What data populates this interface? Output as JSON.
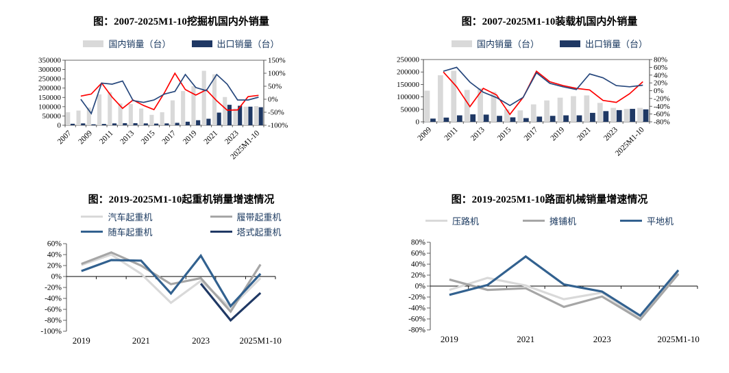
{
  "accent_colors": {
    "bar_gray": "#d9d9d9",
    "bar_navy": "#1f3864",
    "line_red": "#fe0000",
    "line_navy": "#26477c",
    "line_steel_blue": "#32618f",
    "line_mid_gray": "#a6a6a6",
    "line_light_gray": "#d9d9d9",
    "legend_text": "#17365d"
  },
  "chart_data": [
    {
      "type": "bar-line",
      "title": "图：2007-2025M1-10挖掘机国内外销量",
      "legend": [
        {
          "label": "国内销量（台）",
          "color": "#d9d9d9",
          "swatch": "rect"
        },
        {
          "label": "出口销量（台）",
          "color": "#1f3864",
          "swatch": "rect"
        }
      ],
      "categories": [
        "2007",
        "2008",
        "2009",
        "2010",
        "2011",
        "2012",
        "2013",
        "2014",
        "2015",
        "2016",
        "2017",
        "2018",
        "2019",
        "2020",
        "2021",
        "2022",
        "2023",
        "2024",
        "2025M1-10"
      ],
      "x_tick_labels": [
        "2007",
        "2009",
        "2011",
        "2013",
        "2015",
        "2017",
        "2019",
        "2021",
        "2023",
        "2025M1-10"
      ],
      "x_tick_indices": [
        0,
        2,
        4,
        6,
        8,
        10,
        12,
        14,
        16,
        18
      ],
      "bar_series": [
        {
          "name": "domestic-sales-units",
          "label": "国内销量（台）",
          "color": "#d9d9d9",
          "values": [
            70000,
            79000,
            95000,
            166000,
            178000,
            117000,
            114000,
            90000,
            56000,
            70000,
            134000,
            184000,
            210000,
            293000,
            274000,
            152000,
            90000,
            100000,
            103000
          ]
        },
        {
          "name": "export-sales-units",
          "label": "出口销量（台）",
          "color": "#1f3864",
          "values": [
            8000,
            10000,
            5000,
            7000,
            10000,
            11000,
            11000,
            10000,
            9000,
            10000,
            13000,
            19000,
            27000,
            35000,
            68000,
            110000,
            105000,
            100000,
            97000
          ]
        }
      ],
      "line_series": [
        {
          "name": "domestic-yoy-growth-pct",
          "color": "#fe0000",
          "values": [
            null,
            12,
            20,
            62,
            8,
            -35,
            -3,
            -24,
            -40,
            25,
            100,
            37,
            16,
            36,
            -6,
            -42,
            -41,
            10,
            15
          ]
        },
        {
          "name": "export-yoy-growth-pct",
          "color": "#26477c",
          "values": [
            null,
            0,
            -55,
            62,
            58,
            70,
            -5,
            -12,
            -3,
            20,
            30,
            95,
            45,
            33,
            95,
            58,
            -3,
            -3,
            8
          ]
        }
      ],
      "left_axis": {
        "min": 0,
        "max": 350000,
        "labels": [
          "350000",
          "300000",
          "250000",
          "200000",
          "150000",
          "100000",
          "50000",
          "0"
        ]
      },
      "right_axis": {
        "min": -100,
        "max": 150,
        "labels": [
          "150%",
          "100%",
          "50%",
          "0%",
          "-50%",
          "-100%"
        ]
      },
      "legend_position": "top"
    },
    {
      "type": "bar-line",
      "title": "图：2007-2025M1-10装载机国内外销量",
      "legend": [
        {
          "label": "国内销量（台）",
          "color": "#d9d9d9",
          "swatch": "rect"
        },
        {
          "label": "出口销量（台）",
          "color": "#1f3864",
          "swatch": "rect"
        }
      ],
      "categories": [
        "2009",
        "2010",
        "2011",
        "2012",
        "2013",
        "2014",
        "2015",
        "2016",
        "2017",
        "2018",
        "2019",
        "2020",
        "2021",
        "2022",
        "2023",
        "2024",
        "2025M1-10"
      ],
      "x_tick_labels": [
        "2009",
        "2011",
        "2013",
        "2015",
        "2017",
        "2019",
        "2021",
        "2023",
        "2025M1-10"
      ],
      "x_tick_indices": [
        0,
        2,
        4,
        6,
        8,
        10,
        12,
        14,
        16
      ],
      "bar_series": [
        {
          "name": "domestic-sales-units",
          "label": "国内销量（台）",
          "color": "#d9d9d9",
          "values": [
            125000,
            187000,
            205000,
            128000,
            135000,
            120000,
            50000,
            46000,
            70000,
            86000,
            97000,
            103000,
            106000,
            76000,
            56000,
            52000,
            56000
          ]
        },
        {
          "name": "export-sales-units",
          "label": "出口销量（台）",
          "color": "#1f3864",
          "values": [
            13000,
            17000,
            26000,
            30000,
            29000,
            24000,
            18000,
            15000,
            21000,
            24000,
            26000,
            26000,
            36000,
            43000,
            47000,
            52000,
            50000
          ]
        }
      ],
      "line_series": [
        {
          "name": "domestic-yoy-growth-pct",
          "color": "#fe0000",
          "values": [
            null,
            48,
            10,
            -41,
            6,
            -11,
            -61,
            -17,
            50,
            23,
            13,
            6,
            2,
            -25,
            -30,
            -8,
            23
          ]
        },
        {
          "name": "export-yoy-growth-pct",
          "color": "#26477c",
          "values": [
            null,
            50,
            60,
            22,
            -4,
            -18,
            -38,
            -17,
            46,
            19,
            10,
            3,
            43,
            33,
            13,
            10,
            14
          ]
        }
      ],
      "left_axis": {
        "min": 0,
        "max": 250000,
        "labels": [
          "250000",
          "200000",
          "150000",
          "100000",
          "50000",
          "0"
        ]
      },
      "right_axis": {
        "min": -80,
        "max": 80,
        "labels": [
          "80%",
          "60%",
          "40%",
          "20%",
          "0%",
          "-20%",
          "-40%",
          "-60%",
          "-80%"
        ]
      },
      "legend_position": "top"
    },
    {
      "type": "line",
      "title": "图：2019-2025M1-10起重机销量增速情况",
      "legend": [
        {
          "label": "汽车起重机",
          "color": "#d9d9d9",
          "swatch": "line"
        },
        {
          "label": "履带起重机",
          "color": "#a6a6a6",
          "swatch": "line"
        },
        {
          "label": "随车起重机",
          "color": "#32618f",
          "swatch": "line"
        },
        {
          "label": "塔式起重机",
          "color": "#1f3864",
          "swatch": "line"
        }
      ],
      "categories": [
        "2019",
        "2020",
        "2021",
        "2022",
        "2023",
        "2024",
        "2025M1-10"
      ],
      "x_tick_labels": [
        "2019",
        "2021",
        "2023",
        "2025M1-10"
      ],
      "x_tick_indices": [
        0,
        2,
        4,
        6
      ],
      "series": [
        {
          "name": "truck-crane-yoy-pct",
          "label": "汽车起重机",
          "color": "#d9d9d9",
          "values": [
            21,
            40,
            5,
            -48,
            -8,
            -57,
            -3
          ]
        },
        {
          "name": "crawler-crane-yoy-pct",
          "label": "履带起重机",
          "color": "#a6a6a6",
          "values": [
            23,
            44,
            20,
            -14,
            -3,
            -64,
            22
          ]
        },
        {
          "name": "truck-mounted-crane-yoy-pct",
          "label": "随车起重机",
          "color": "#32618f",
          "values": [
            10,
            30,
            29,
            -31,
            38,
            -54,
            5
          ]
        },
        {
          "name": "tower-crane-yoy-pct",
          "label": "塔式起重机",
          "color": "#1f3864",
          "values": [
            null,
            null,
            null,
            null,
            -13,
            -80,
            -30
          ]
        }
      ],
      "y_axis": {
        "min": -100,
        "max": 60,
        "labels": [
          "60%",
          "40%",
          "20%",
          "0%",
          "-20%",
          "-40%",
          "-60%",
          "-80%",
          "-100%"
        ]
      },
      "legend_position": "top"
    },
    {
      "type": "line",
      "title": "图：2019-2025M1-10路面机械销量增速情况",
      "legend": [
        {
          "label": "压路机",
          "color": "#d9d9d9",
          "swatch": "line"
        },
        {
          "label": "摊铺机",
          "color": "#a6a6a6",
          "swatch": "line"
        },
        {
          "label": "平地机",
          "color": "#32618f",
          "swatch": "line"
        }
      ],
      "categories": [
        "2019",
        "2020",
        "2021",
        "2022",
        "2023",
        "2024",
        "2025M1-10"
      ],
      "x_tick_labels": [
        "2019",
        "2021",
        "2023",
        "2025M1-10"
      ],
      "x_tick_indices": [
        0,
        2,
        4,
        6
      ],
      "series": [
        {
          "name": "road-roller-yoy-pct",
          "label": "压路机",
          "color": "#d9d9d9",
          "values": [
            -7,
            15,
            1,
            -24,
            -12,
            -59,
            24
          ]
        },
        {
          "name": "paver-yoy-pct",
          "label": "摊铺机",
          "color": "#a6a6a6",
          "values": [
            12,
            -7,
            -4,
            -38,
            -19,
            -61,
            22
          ]
        },
        {
          "name": "grader-yoy-pct",
          "label": "平地机",
          "color": "#32618f",
          "values": [
            -16,
            2,
            54,
            3,
            -10,
            -54,
            29
          ]
        }
      ],
      "y_axis": {
        "min": -80,
        "max": 80,
        "labels": [
          "80%",
          "60%",
          "40%",
          "20%",
          "0%",
          "-20%",
          "-40%",
          "-60%",
          "-80%"
        ]
      },
      "legend_position": "top"
    }
  ]
}
